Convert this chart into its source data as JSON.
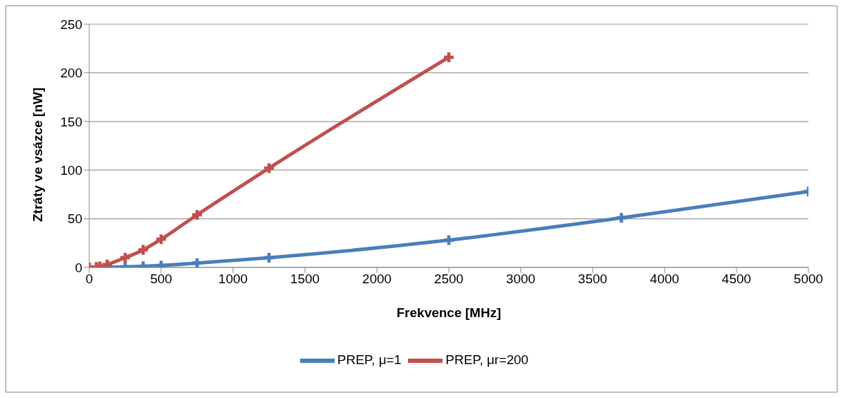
{
  "chart_data": {
    "type": "line",
    "xlabel": "Frekvence [MHz]",
    "ylabel": "Ztráty ve vsázce [nW]",
    "series": [
      {
        "name": "PREP, μ=1",
        "color": "#4a7ebb",
        "x": [
          0,
          125,
          250,
          375,
          500,
          750,
          1250,
          2500,
          3700,
          5000
        ],
        "values": [
          0,
          0.2,
          0.6,
          1.2,
          2,
          4.5,
          10,
          28,
          51,
          78
        ]
      },
      {
        "name": "PREP, μr=200",
        "color": "#c0504d",
        "x": [
          0,
          50,
          75,
          125,
          250,
          375,
          500,
          750,
          1250,
          2500
        ],
        "values": [
          0,
          0.5,
          1,
          3,
          10,
          18,
          29,
          54,
          102,
          216
        ]
      }
    ],
    "xlim": [
      0,
      5000
    ],
    "xticks": [
      0,
      500,
      1000,
      1500,
      2000,
      2500,
      3000,
      3500,
      4000,
      4500,
      5000
    ],
    "ylim": [
      0,
      250
    ],
    "yticks": [
      0,
      50,
      100,
      150,
      200,
      250
    ],
    "grid": "y",
    "legend": "bottom",
    "marker": "cross",
    "line_style": "solid"
  }
}
